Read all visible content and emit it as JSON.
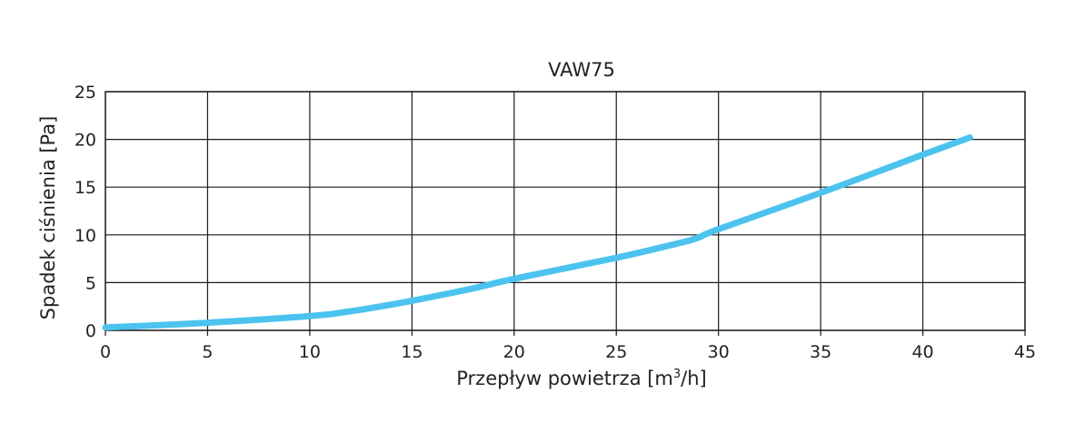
{
  "chart_data": {
    "type": "line",
    "title": "VAW75",
    "xlabel_pre": "Przepływ powietrza [m",
    "xlabel_sup": "3",
    "xlabel_post": "/h]",
    "ylabel": "Spadek ciśnienia [Pa]",
    "xlim": [
      0,
      45
    ],
    "ylim": [
      0,
      25
    ],
    "xticks": [
      0,
      5,
      10,
      15,
      20,
      25,
      30,
      35,
      40,
      45
    ],
    "yticks": [
      0,
      5,
      10,
      15,
      20,
      25
    ],
    "grid": true,
    "series": [
      {
        "color": "#4cc3ee",
        "x": [
          0,
          5,
          10,
          12,
          15,
          18,
          20,
          25,
          28,
          29,
          30,
          35,
          40,
          42.3
        ],
        "y": [
          0.3,
          0.8,
          1.5,
          2,
          3.1,
          4.4,
          5.4,
          7.6,
          9.1,
          9.7,
          10.6,
          14.4,
          18.4,
          20.2
        ]
      }
    ]
  }
}
